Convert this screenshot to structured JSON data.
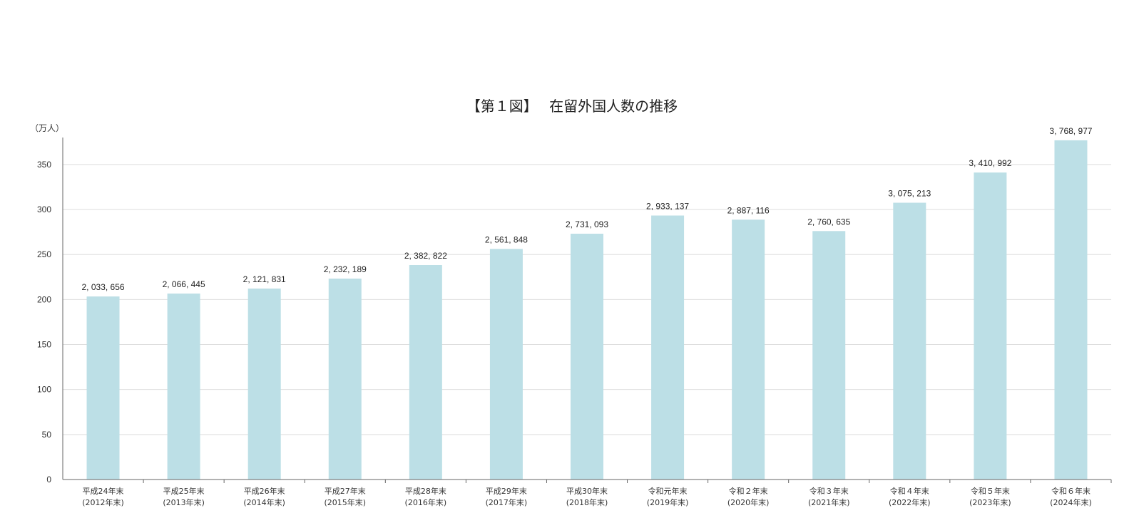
{
  "chart_data": {
    "type": "bar",
    "title": "【第１図】　 在留外国人数の推移",
    "ylabel": "（万人）",
    "xlabel": "",
    "ylim": [
      0,
      380
    ],
    "yticks": [
      0,
      50,
      100,
      150,
      200,
      250,
      300,
      350
    ],
    "grid": true,
    "bar_color": "#bcdfe6",
    "categories": [
      [
        "平成24年末",
        "(2012年末)"
      ],
      [
        "平成25年末",
        "(2013年末)"
      ],
      [
        "平成26年末",
        "(2014年末)"
      ],
      [
        "平成27年末",
        "(2015年末)"
      ],
      [
        "平成28年末",
        "(2016年末)"
      ],
      [
        "平成29年末",
        "(2017年末)"
      ],
      [
        "平成30年末",
        "(2018年末)"
      ],
      [
        "令和元年末",
        "(2019年末)"
      ],
      [
        "令和２年末",
        "(2020年末)"
      ],
      [
        "令和３年末",
        "(2021年末)"
      ],
      [
        "令和４年末",
        "(2022年末)"
      ],
      [
        "令和５年末",
        "(2023年末)"
      ],
      [
        "令和６年末",
        "(2024年末)"
      ]
    ],
    "values": [
      2033656,
      2066445,
      2121831,
      2232189,
      2382822,
      2561848,
      2731093,
      2933137,
      2887116,
      2760635,
      3075213,
      3410992,
      3768977
    ],
    "data_labels": [
      "2, 033, 656",
      "2, 066, 445",
      "2, 121, 831",
      "2, 232, 189",
      "2, 382, 822",
      "2, 561, 848",
      "2, 731, 093",
      "2, 933, 137",
      "2, 887, 116",
      "2, 760, 635",
      "3, 075, 213",
      "3, 410, 992",
      "3, 768, 977"
    ]
  }
}
